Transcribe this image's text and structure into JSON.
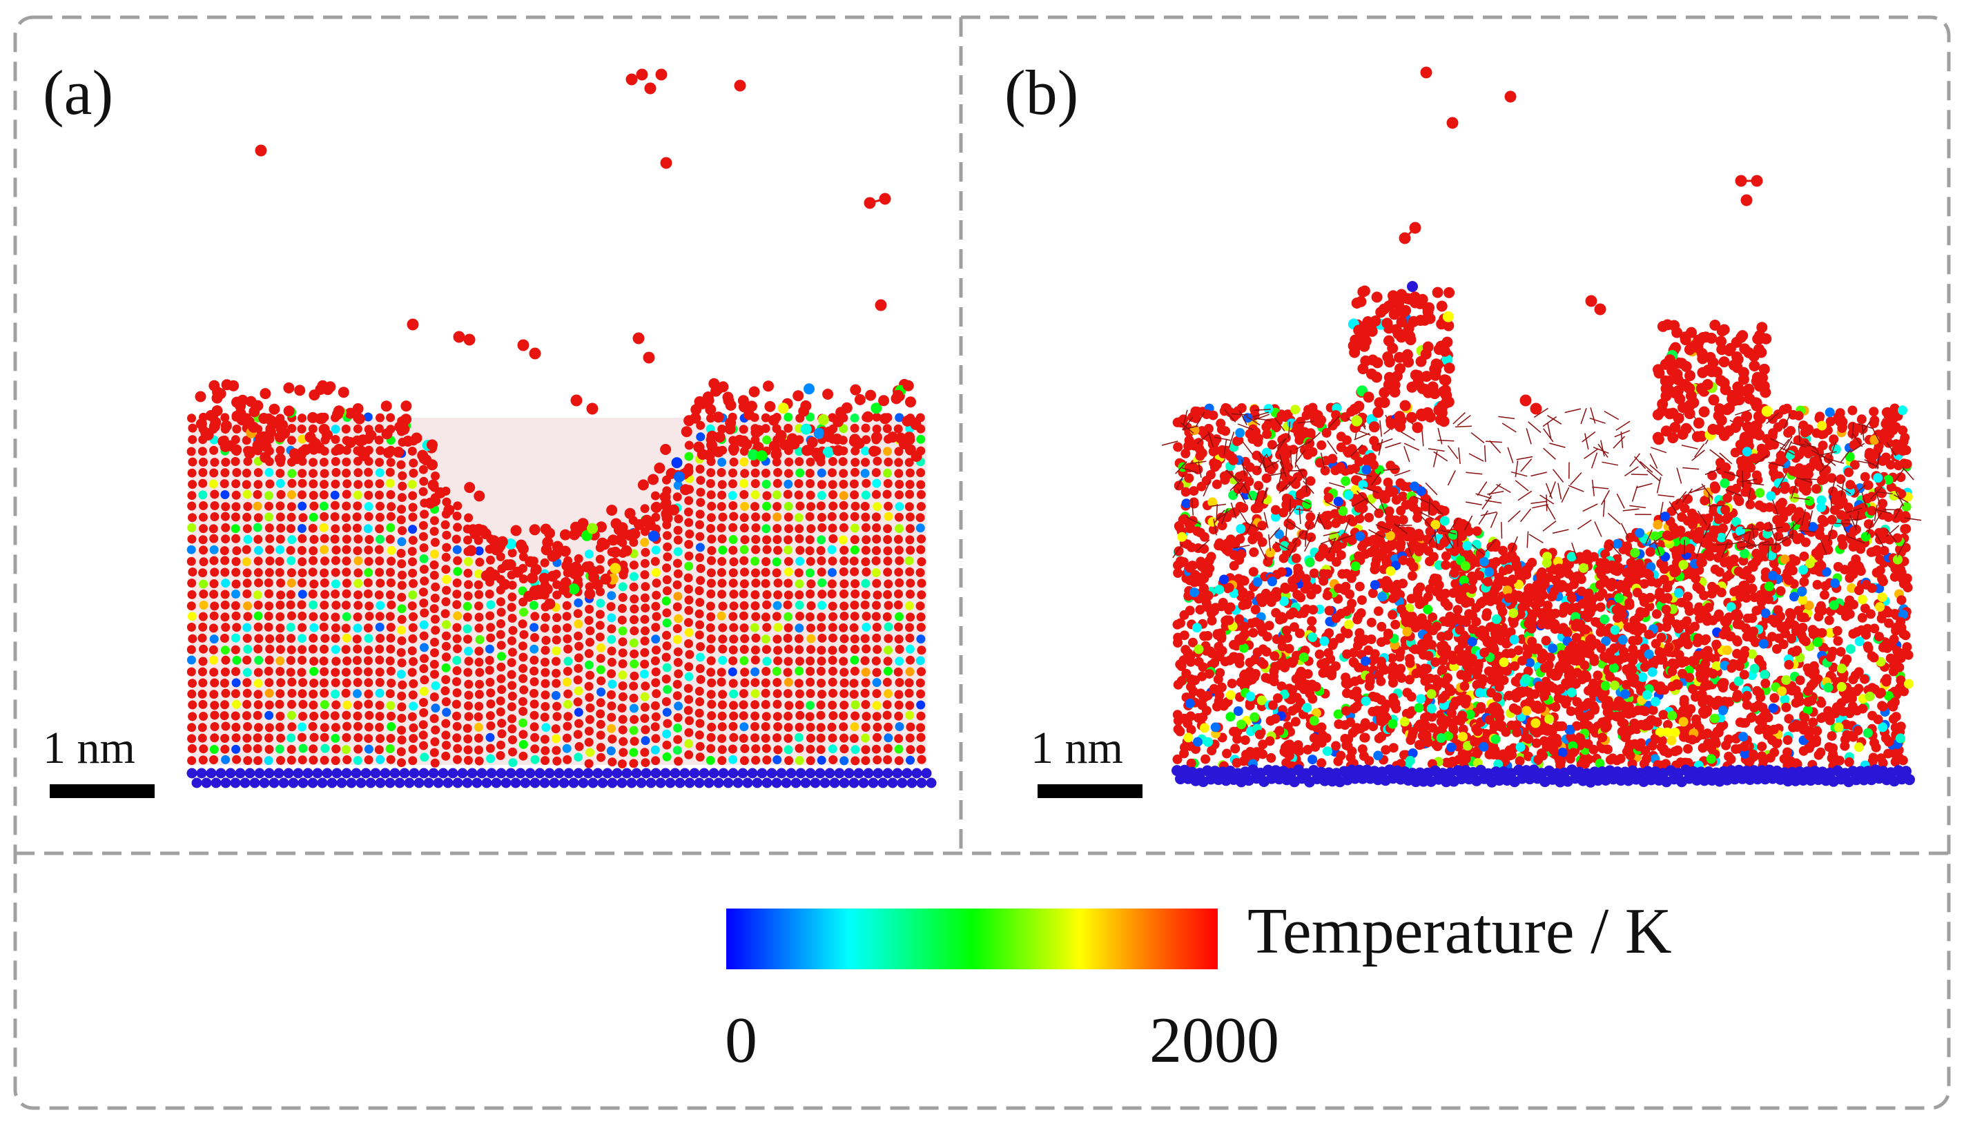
{
  "panels": [
    {
      "id": "a",
      "label": "(a)",
      "scale_bar_label": "1 nm"
    },
    {
      "id": "b",
      "label": "(b)",
      "scale_bar_label": "1 nm"
    }
  ],
  "colorbar": {
    "title": "Temperature / K",
    "min_label": "0",
    "max_label": "2000",
    "min": 0,
    "max": 2000,
    "stops": [
      "#0000ff",
      "#00ffff",
      "#00ff00",
      "#ffff00",
      "#ff7700",
      "#ff0000"
    ]
  },
  "colors": {
    "oxygen": "#e8140f",
    "substrate": "#2a16d6",
    "frame": "#a0a0a0",
    "bond": "#ffffff"
  }
}
